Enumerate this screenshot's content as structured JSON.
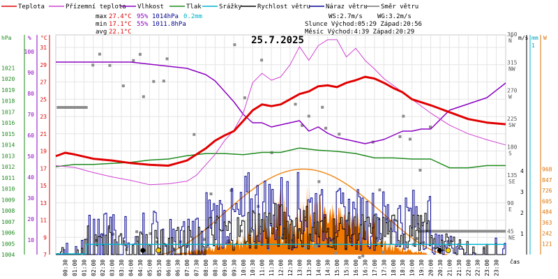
{
  "chart_data": {
    "type": "line",
    "title": "25.7.2025",
    "legend": [
      {
        "name": "Teplota",
        "color": "#e00000"
      },
      {
        "name": "Přízemní teplota",
        "color": "#d040d0"
      },
      {
        "name": "Vlhkost",
        "color": "#8a00c0"
      },
      {
        "name": "Tlak",
        "color": "#1e8a1e"
      },
      {
        "name": "Srážky",
        "color": "#00b0c8"
      },
      {
        "name": "Rychlost větru",
        "color": "#000000"
      },
      {
        "name": "Náraz větru",
        "color": "#000090"
      },
      {
        "name": "Směr větru",
        "color": "#707070"
      }
    ],
    "stats": {
      "max": {
        "label": "max",
        "temp": "27.4°C",
        "hum": "95%",
        "press": "1014hPa",
        "rain": "0.2mm"
      },
      "min": {
        "label": "min",
        "temp": "17.1°C",
        "hum": "55%",
        "press": "1011.8hPa"
      },
      "avg": {
        "label": "avg",
        "temp": "22.1°C"
      }
    },
    "info": {
      "ws": "WS:2.7m/s",
      "wg": "WG:3.2m/s",
      "sun": "Slunce Východ:05:29 Západ:20:56",
      "moon": "Měsíc Východ:4:39 Západ:20:29"
    },
    "axes_left": {
      "hpa": {
        "unit": "hPa",
        "color": "#1e8a1e",
        "ticks": [
          "1004",
          "1005",
          "1006",
          "1007",
          "1008",
          "1009",
          "1010",
          "1011",
          "1012",
          "1013",
          "1014",
          "1015",
          "1016",
          "1017",
          "1018",
          "1019",
          "1020",
          "1021"
        ]
      },
      "pct": {
        "unit": "%",
        "color": "#8a00c0",
        "ticks": [
          "100",
          "90",
          "80",
          "70",
          "60",
          "50",
          "40",
          "30",
          "20",
          "10"
        ]
      },
      "temp": {
        "unit": "°C",
        "color": "#e00000",
        "ticks": [
          "31",
          "29",
          "27",
          "25",
          "23",
          "21",
          "19",
          "17",
          "15",
          "13",
          "11",
          "9",
          "7"
        ]
      }
    },
    "axes_right": {
      "dir": {
        "unit": "°",
        "ticks": [
          "360",
          "315",
          "270",
          "225",
          "180",
          "135",
          "90",
          "45"
        ],
        "labels": [
          "N",
          "NW",
          "W",
          "SW",
          "S",
          "SE",
          "E",
          "NE"
        ]
      },
      "ms": {
        "unit": "m/s",
        "ticks": [
          "4",
          "3",
          "2",
          "1"
        ]
      },
      "mm": {
        "unit": "mm",
        "ticks": [
          "1"
        ]
      },
      "wm2": {
        "unit": "W",
        "color": "#e07000",
        "ticks": [
          "968",
          "847",
          "726",
          "605",
          "484",
          "363",
          "242",
          "121"
        ]
      }
    },
    "x_label": "čas",
    "x_ticks": [
      "00:30",
      "01:00",
      "01:30",
      "02:00",
      "02:30",
      "03:00",
      "03:30",
      "04:00",
      "04:30",
      "05:00",
      "05:30",
      "06:00",
      "06:30",
      "07:00",
      "07:30",
      "08:00",
      "08:30",
      "09:00",
      "09:30",
      "10:00",
      "10:30",
      "11:00",
      "11:30",
      "12:00",
      "12:30",
      "13:00",
      "13:30",
      "14:00",
      "14:30",
      "15:00",
      "15:30",
      "16:00",
      "16:30",
      "17:00",
      "17:30",
      "18:00",
      "18:30",
      "19:00",
      "19:30",
      "20:00",
      "20:30",
      "21:00",
      "21:30",
      "22:00",
      "22:30",
      "23:00",
      "23:30"
    ],
    "x_range_hours": [
      0,
      24
    ],
    "temp_series": {
      "hours": [
        0,
        0.5,
        1,
        2,
        3,
        4,
        5,
        6,
        6.5,
        7,
        7.5,
        8,
        8.5,
        9,
        9.5,
        10,
        10.5,
        11,
        11.5,
        12,
        12.5,
        13,
        13.5,
        14,
        14.5,
        15,
        15.5,
        16,
        16.5,
        17,
        17.5,
        18,
        18.5,
        19,
        20,
        21,
        22,
        23,
        24
      ],
      "values": [
        18.4,
        18.8,
        18.6,
        18.1,
        17.9,
        17.6,
        17.4,
        17.3,
        17.6,
        17.9,
        18.6,
        19.3,
        20.2,
        20.8,
        21.3,
        22.5,
        23.7,
        24.4,
        24.2,
        24.4,
        25.0,
        25.6,
        25.9,
        26.5,
        26.6,
        26.4,
        26.9,
        27.2,
        27.6,
        27.4,
        26.9,
        26.3,
        25.8,
        25.0,
        24.3,
        23.5,
        22.7,
        22.3,
        22.1
      ]
    },
    "ground_temp_series": {
      "hours": [
        0,
        1,
        2,
        3,
        4,
        5,
        6,
        7,
        7.5,
        8,
        8.5,
        9,
        9.5,
        10,
        10.5,
        11,
        11.5,
        12,
        12.5,
        13,
        13.5,
        14,
        14.5,
        15,
        15.5,
        16,
        16.5,
        17,
        17.5,
        18,
        19,
        20,
        21,
        22,
        23,
        24
      ],
      "values": [
        17.3,
        17.1,
        16.5,
        16.0,
        15.6,
        15.1,
        15.2,
        15.5,
        16.2,
        17.4,
        18.6,
        20.2,
        21.4,
        23.4,
        26.9,
        28.0,
        27.2,
        27.6,
        29.0,
        31.1,
        29.5,
        31.2,
        31.9,
        31.9,
        29.9,
        30.9,
        29.5,
        28.5,
        27.4,
        26.6,
        25.0,
        23.4,
        22.0,
        21.0,
        20.3,
        19.7
      ]
    },
    "humidity_series": {
      "hours": [
        0,
        1,
        2,
        3,
        4,
        5,
        6,
        7,
        8,
        8.5,
        9,
        9.5,
        10,
        10.5,
        11,
        11.5,
        12,
        12.5,
        13,
        13.5,
        14,
        14.5,
        15,
        15.5,
        16,
        16.5,
        17,
        17.5,
        18,
        18.5,
        19,
        19.5,
        20,
        21,
        22,
        23,
        24
      ],
      "values": [
        95,
        95,
        95,
        95,
        95,
        94,
        93,
        92,
        89,
        86,
        81,
        76,
        70,
        66,
        66,
        64,
        65,
        66,
        67,
        62,
        64,
        61,
        59,
        58,
        57,
        56,
        57,
        58,
        60,
        62,
        62,
        63,
        63,
        72,
        75,
        78,
        85
      ]
    },
    "pressure_series": {
      "hours": [
        0,
        1,
        2,
        3,
        4,
        5,
        6,
        7,
        8,
        9,
        10,
        11,
        12,
        13,
        14,
        15,
        16,
        17,
        18,
        19,
        20,
        21,
        22,
        23,
        24
      ],
      "values": [
        1012.0,
        1012.2,
        1012.2,
        1012.3,
        1012.4,
        1012.6,
        1012.7,
        1013.0,
        1013.2,
        1013.2,
        1013.1,
        1013.3,
        1013.3,
        1013.7,
        1013.5,
        1013.4,
        1013.2,
        1012.8,
        1012.8,
        1012.7,
        1012.7,
        1011.9,
        1011.9,
        1012.1,
        1012.1
      ]
    },
    "rain_total_mm": 0.2,
    "rain_start_hour": 1.6,
    "solar_peak_wm2": 968,
    "sunrise_hour": 5.48,
    "sunset_hour": 20.93
  }
}
